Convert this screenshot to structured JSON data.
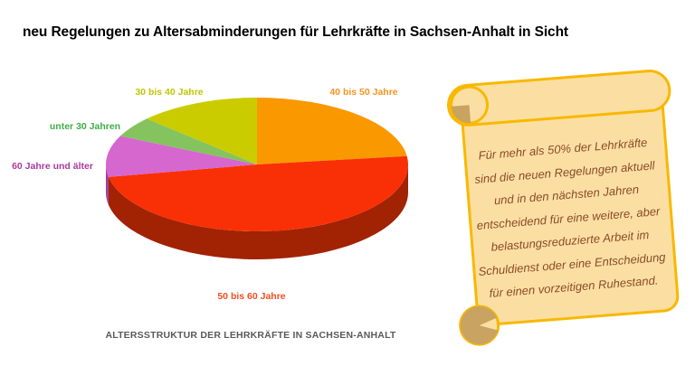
{
  "title": "neu Regelungen zu Altersabminderungen für Lehrkräfte in Sachsen-Anhalt in Sicht",
  "chart_data": {
    "type": "pie",
    "style": "3d",
    "title": "ALTERSSTRUKTUR DER LEHRKRÄFTE IN SACHSEN-ANHALT",
    "start_angle_deg": 90,
    "direction": "clockwise",
    "values_estimated_from_angles": true,
    "legend_position": "labels around pie",
    "slices": [
      {
        "label": "40 bis 50 Jahre",
        "value": 23,
        "color": "#FA9800",
        "side_color": "#B06B00",
        "label_color": "#F7941D"
      },
      {
        "label": "50 bis 60 Jahre",
        "value": 49,
        "color": "#F93005",
        "side_color": "#A22204",
        "label_color": "#F04E23"
      },
      {
        "label": "60 Jahre und älter",
        "value": 10,
        "color": "#D667CE",
        "side_color": "#A0409A",
        "label_color": "#A93A9E"
      },
      {
        "label": "unter 30 Jahren",
        "value": 5,
        "color": "#85C35F",
        "side_color": "#5B8C3E",
        "label_color": "#3FAE49"
      },
      {
        "label": "30 bis 40 Jahre",
        "value": 13,
        "color": "#CBCC00",
        "side_color": "#8F9000",
        "label_color": "#C0C700"
      }
    ]
  },
  "scroll": {
    "colors": {
      "fill": "#FBDFA2",
      "border": "#F9B800",
      "curl": "#C9A361",
      "text": "#8C4A2B"
    },
    "lines": [
      "Für mehr als 50% der Lehrkräfte",
      "sind die neuen Regelungen aktuell",
      "und in den nächsten Jahren",
      "entscheidend für eine weitere, aber",
      "belastungsreduzierte Arbeit im",
      "Schuldienst oder eine Entscheidung",
      "für einen vorzeitigen Ruhestand."
    ]
  }
}
